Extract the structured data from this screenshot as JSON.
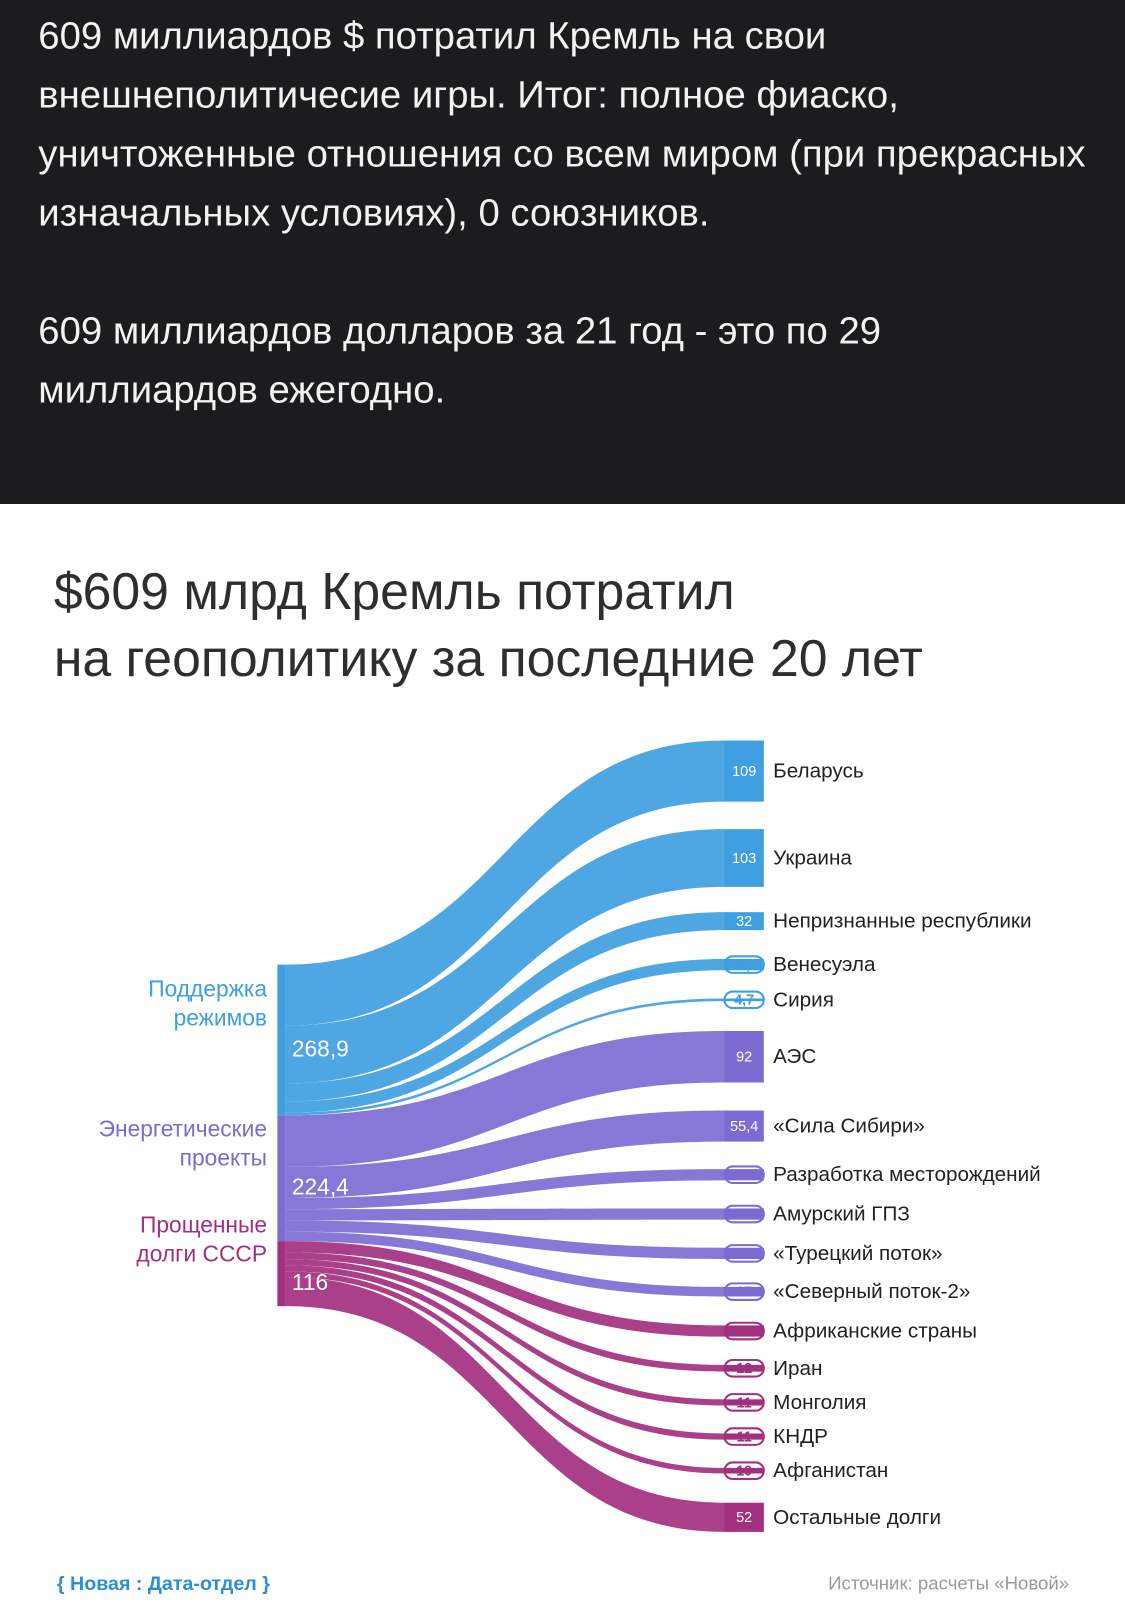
{
  "post": {
    "paragraphs": [
      "609 миллиардов $ потратил Кремль на свои внешнеполитичесие игры. Итог: полное фиаско, уничтоженные отношения со всем миром (при прекрасных изначальных условиях), 0 союзников.",
      "609 миллиардов долларов за 21 год - это по 29 миллиардов ежегодно."
    ]
  },
  "chart_data": {
    "type": "sankey",
    "title": [
      "$609 млрд Кремль потратил",
      "на геополитику за последние 20 лет"
    ],
    "sources": [
      {
        "name": "Поддержка режимов",
        "value": 268.9,
        "value_label": "268,9",
        "color": "#3f9fe0",
        "targets": [
          {
            "name": "Беларусь",
            "value": 109,
            "value_label": "109"
          },
          {
            "name": "Украина",
            "value": 103,
            "value_label": "103"
          },
          {
            "name": "Непризнанные республики",
            "value": 32,
            "value_label": "32"
          },
          {
            "name": "Венесуэла",
            "value": 20.2,
            "value_label": "20,2"
          },
          {
            "name": "Сирия",
            "value": 4.7,
            "value_label": "4,7"
          }
        ]
      },
      {
        "name": "Энергетические проекты",
        "value": 224.4,
        "value_label": "224,4",
        "color": "#7d6bd3",
        "targets": [
          {
            "name": "АЭС",
            "value": 92,
            "value_label": "92"
          },
          {
            "name": "«Сила Сибири»",
            "value": 55.4,
            "value_label": "55,4"
          },
          {
            "name": "Разработка месторождений",
            "value": 20,
            "value_label": "20"
          },
          {
            "name": "Амурский ГПЗ",
            "value": 20,
            "value_label": "20"
          },
          {
            "name": "«Турецкий поток»",
            "value": 20,
            "value_label": "20"
          },
          {
            "name": "«Северный поток-2»",
            "value": 17,
            "value_label": "17"
          }
        ]
      },
      {
        "name": "Прощенные долги СССР",
        "value": 116,
        "value_label": "116",
        "color": "#a3307f",
        "targets": [
          {
            "name": "Африканские страны",
            "value": 20,
            "value_label": "20"
          },
          {
            "name": "Иран",
            "value": 12,
            "value_label": "12"
          },
          {
            "name": "Монголия",
            "value": 11,
            "value_label": "11"
          },
          {
            "name": "КНДР",
            "value": 11,
            "value_label": "11"
          },
          {
            "name": "Афганистан",
            "value": 10,
            "value_label": "10"
          },
          {
            "name": "Остальные долги",
            "value": 52,
            "value_label": "52"
          }
        ]
      }
    ],
    "credit": "{ Новая : Дата-отдел }",
    "source_note": "Источник: расчеты «Новой»"
  }
}
